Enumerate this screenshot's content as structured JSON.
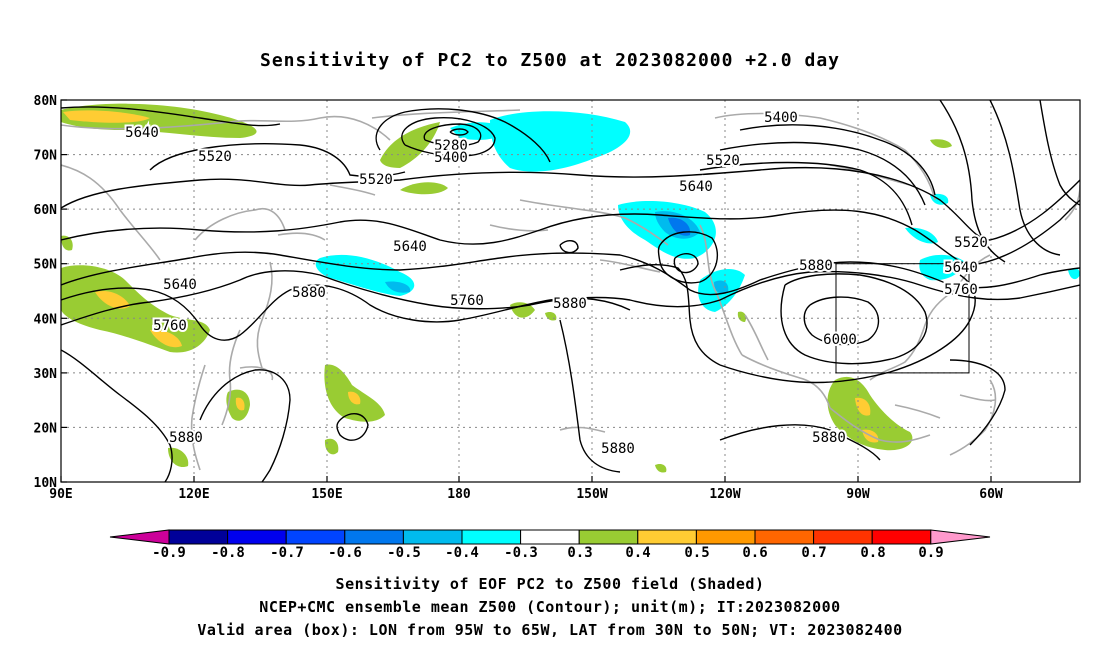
{
  "title": "Sensitivity of PC2 to Z500 at 2023082000 +2.0 day",
  "lat_labels": [
    "80N",
    "70N",
    "60N",
    "50N",
    "40N",
    "30N",
    "20N",
    "10N"
  ],
  "lon_labels": [
    "90E",
    "120E",
    "150E",
    "180",
    "150W",
    "120W",
    "90W",
    "60W"
  ],
  "contour_labels": [
    {
      "text": "5640"
    },
    {
      "text": "5520"
    },
    {
      "text": "5520"
    },
    {
      "text": "5280"
    },
    {
      "text": "5400"
    },
    {
      "text": "5400"
    },
    {
      "text": "5520"
    },
    {
      "text": "5640"
    },
    {
      "text": "5640"
    },
    {
      "text": "5520"
    },
    {
      "text": "5640"
    },
    {
      "text": "5760"
    },
    {
      "text": "5880"
    },
    {
      "text": "5640"
    },
    {
      "text": "5760"
    },
    {
      "text": "5880"
    },
    {
      "text": "5760"
    },
    {
      "text": "5880"
    },
    {
      "text": "6000"
    },
    {
      "text": "5880"
    },
    {
      "text": "5880"
    },
    {
      "text": "5880"
    }
  ],
  "colorbar": {
    "labels": [
      "-0.9",
      "-0.8",
      "-0.7",
      "-0.6",
      "-0.5",
      "-0.4",
      "-0.3",
      "0.3",
      "0.4",
      "0.5",
      "0.6",
      "0.7",
      "0.8",
      "0.9"
    ],
    "colors": [
      "#cc0099",
      "#000099",
      "#0000ee",
      "#0044ff",
      "#0077ee",
      "#00bbee",
      "#00ffff",
      "#ffffff",
      "#99cc33",
      "#ffcc33",
      "#ff9900",
      "#ff6600",
      "#ff3300",
      "#ff0000",
      "#ff99cc"
    ]
  },
  "valid_box": {
    "lon_min": -95,
    "lon_max": -65,
    "lat_min": 30,
    "lat_max": 50
  },
  "footer": {
    "line1": "Sensitivity of EOF PC2 to Z500 field (Shaded)",
    "line2": "NCEP+CMC ensemble mean Z500 (Contour); unit(m); IT:2023082000",
    "line3": "Valid area (box): LON from 95W to 65W, LAT from 30N to 50N; VT: 2023082400"
  }
}
